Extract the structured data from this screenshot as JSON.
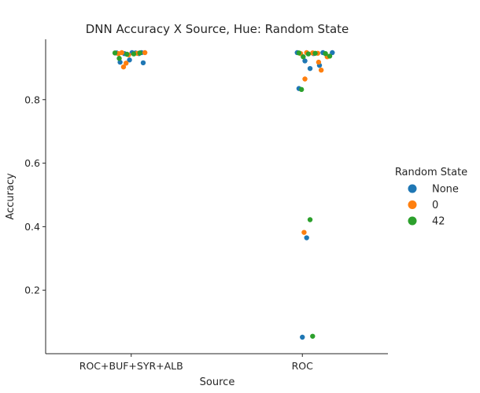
{
  "chart_data": {
    "type": "scatter",
    "subtype": "strip",
    "title": "DNN Accuracy X Source, Hue: Random State",
    "xlabel": "Source",
    "ylabel": "Accuracy",
    "categories": [
      "ROC+BUF+SYR+ALB",
      "ROC"
    ],
    "yticks": [
      "0.2",
      "0.4",
      "0.6",
      "0.8"
    ],
    "ylim": [
      0.0,
      0.99
    ],
    "legend": {
      "title": "Random State",
      "placement": "right",
      "entries": [
        "None",
        "0",
        "42"
      ]
    },
    "colors": {
      "None": "#1f77b4",
      "0": "#ff7f0e",
      "42": "#2ca02c"
    },
    "series": [
      {
        "name": "None",
        "points": [
          {
            "cat": 0,
            "j": -0.17,
            "y": 0.947
          },
          {
            "cat": 0,
            "j": -0.13,
            "y": 0.918
          },
          {
            "cat": 0,
            "j": -0.08,
            "y": 0.945
          },
          {
            "cat": 0,
            "j": -0.02,
            "y": 0.925
          },
          {
            "cat": 0,
            "j": 0.01,
            "y": 0.948
          },
          {
            "cat": 0,
            "j": 0.05,
            "y": 0.947
          },
          {
            "cat": 0,
            "j": 0.09,
            "y": 0.945
          },
          {
            "cat": 0,
            "j": 0.14,
            "y": 0.916
          },
          {
            "cat": 0,
            "j": 0.12,
            "y": 0.948
          },
          {
            "cat": 1,
            "j": -0.06,
            "y": 0.948
          },
          {
            "cat": 1,
            "j": 0.03,
            "y": 0.922
          },
          {
            "cat": 1,
            "j": 0.09,
            "y": 0.898
          },
          {
            "cat": 1,
            "j": 0.13,
            "y": 0.945
          },
          {
            "cat": 1,
            "j": 0.2,
            "y": 0.908
          },
          {
            "cat": 1,
            "j": 0.24,
            "y": 0.948
          },
          {
            "cat": 1,
            "j": 0.35,
            "y": 0.948
          },
          {
            "cat": 1,
            "j": -0.04,
            "y": 0.835
          },
          {
            "cat": 1,
            "j": 0.05,
            "y": 0.365
          },
          {
            "cat": 1,
            "j": 0.0,
            "y": 0.052
          }
        ]
      },
      {
        "name": "0",
        "points": [
          {
            "cat": 0,
            "j": -0.15,
            "y": 0.945
          },
          {
            "cat": 0,
            "j": -0.11,
            "y": 0.948
          },
          {
            "cat": 0,
            "j": -0.09,
            "y": 0.903
          },
          {
            "cat": 0,
            "j": -0.06,
            "y": 0.915
          },
          {
            "cat": 0,
            "j": -0.03,
            "y": 0.941
          },
          {
            "cat": 0,
            "j": 0.07,
            "y": 0.946
          },
          {
            "cat": 0,
            "j": 0.16,
            "y": 0.948
          },
          {
            "cat": 1,
            "j": -0.02,
            "y": 0.945
          },
          {
            "cat": 1,
            "j": 0.05,
            "y": 0.948
          },
          {
            "cat": 1,
            "j": 0.12,
            "y": 0.947
          },
          {
            "cat": 1,
            "j": 0.18,
            "y": 0.946
          },
          {
            "cat": 1,
            "j": 0.19,
            "y": 0.918
          },
          {
            "cat": 1,
            "j": 0.22,
            "y": 0.893
          },
          {
            "cat": 1,
            "j": 0.29,
            "y": 0.935
          },
          {
            "cat": 1,
            "j": 0.03,
            "y": 0.865
          },
          {
            "cat": 1,
            "j": 0.02,
            "y": 0.382
          }
        ]
      },
      {
        "name": "42",
        "points": [
          {
            "cat": 0,
            "j": -0.19,
            "y": 0.947
          },
          {
            "cat": 0,
            "j": -0.14,
            "y": 0.93
          },
          {
            "cat": 0,
            "j": -0.05,
            "y": 0.943
          },
          {
            "cat": 0,
            "j": 0.03,
            "y": 0.944
          },
          {
            "cat": 0,
            "j": 0.1,
            "y": 0.947
          },
          {
            "cat": 1,
            "j": -0.04,
            "y": 0.947
          },
          {
            "cat": 1,
            "j": 0.01,
            "y": 0.935
          },
          {
            "cat": 1,
            "j": 0.07,
            "y": 0.944
          },
          {
            "cat": 1,
            "j": 0.15,
            "y": 0.946
          },
          {
            "cat": 1,
            "j": 0.27,
            "y": 0.945
          },
          {
            "cat": 1,
            "j": 0.32,
            "y": 0.937
          },
          {
            "cat": 1,
            "j": -0.01,
            "y": 0.832
          },
          {
            "cat": 1,
            "j": 0.09,
            "y": 0.422
          },
          {
            "cat": 1,
            "j": 0.12,
            "y": 0.055
          }
        ]
      }
    ]
  }
}
